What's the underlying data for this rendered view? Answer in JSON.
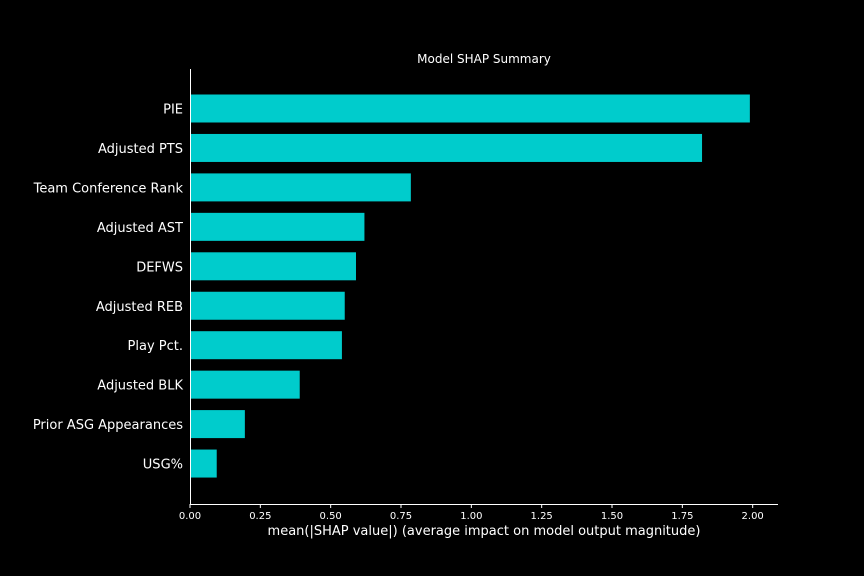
{
  "chart_data": {
    "type": "bar",
    "orientation": "horizontal",
    "title": "Model SHAP Summary",
    "xlabel": "mean(|SHAP value|) (average impact on model output magnitude)",
    "ylabel": "",
    "categories": [
      "PIE",
      "Adjusted PTS",
      "Team Conference Rank",
      "Adjusted AST",
      "DEFWS",
      "Adjusted REB",
      "Play Pct.",
      "Adjusted BLK",
      "Prior ASG Appearances",
      "USG%"
    ],
    "values": [
      1.99,
      1.82,
      0.785,
      0.62,
      0.59,
      0.55,
      0.54,
      0.39,
      0.195,
      0.095
    ],
    "xlim": [
      0.0,
      2.09
    ],
    "xticks": [
      "0.00",
      "0.25",
      "0.50",
      "0.75",
      "1.00",
      "1.25",
      "1.50",
      "1.75",
      "2.00"
    ],
    "grid": false,
    "legend": "none",
    "bar_color": "#00cccc",
    "background_color": "#000000",
    "text_color": "#ffffff"
  }
}
